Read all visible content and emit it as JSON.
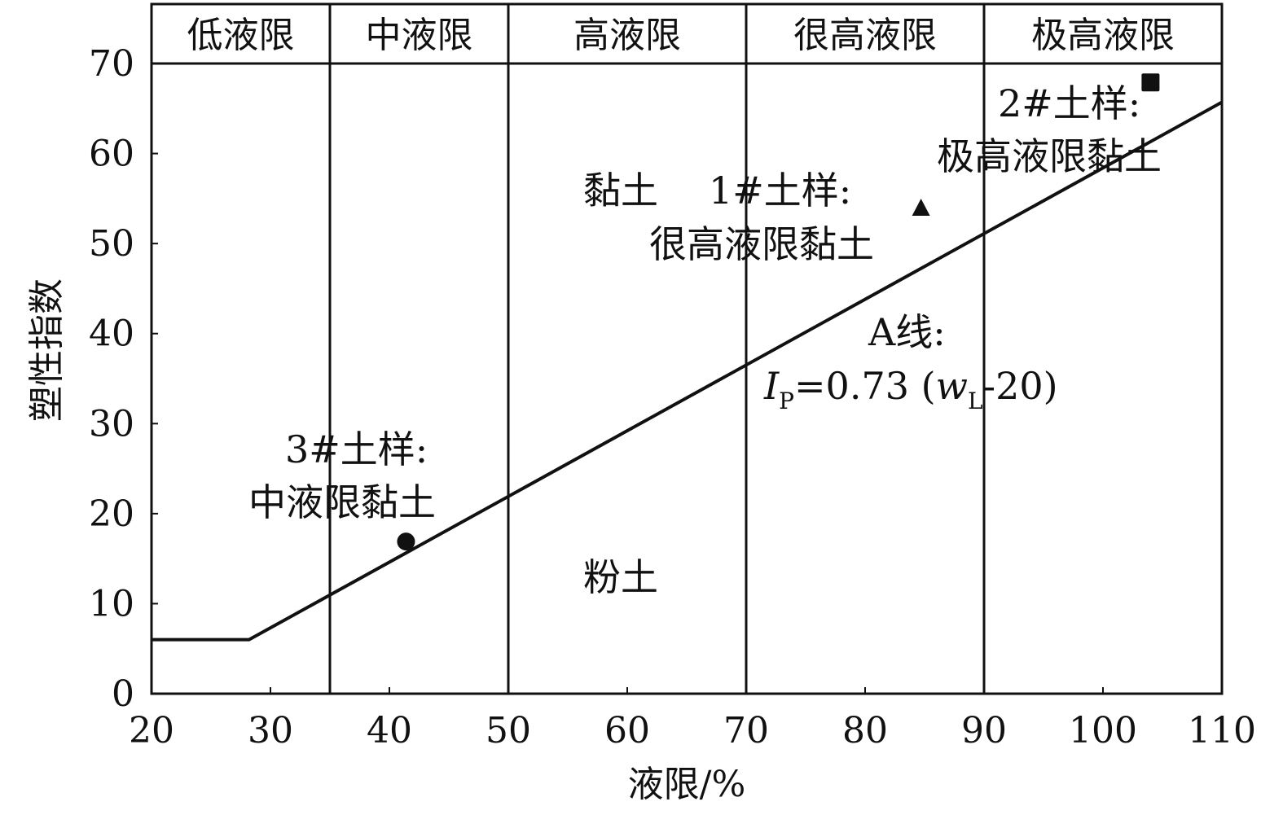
{
  "chart_data": {
    "type": "scatter",
    "title": "",
    "xlabel": "液限/%",
    "ylabel": "塑性指数",
    "xlim": [
      20,
      110
    ],
    "ylim": [
      0,
      70
    ],
    "xticks": [
      20,
      30,
      40,
      50,
      60,
      70,
      80,
      90,
      100,
      110
    ],
    "yticks": [
      0,
      10,
      20,
      30,
      40,
      50,
      60,
      70
    ],
    "grid": false,
    "zones": [
      {
        "label": "低液限",
        "from": 20,
        "to": 35
      },
      {
        "label": "中液限",
        "from": 35,
        "to": 50
      },
      {
        "label": "高液限",
        "from": 50,
        "to": 70
      },
      {
        "label": "很高液限",
        "from": 70,
        "to": 90
      },
      {
        "label": "极高液限",
        "from": 90,
        "to": 110
      }
    ],
    "a_line": {
      "label": "A线:",
      "formula_I": "I",
      "formula_sub_P": "P",
      "formula_mid": "=0.73 (",
      "formula_w": "w",
      "formula_sub_L": "L",
      "formula_end": "-20)",
      "points": [
        [
          20,
          6
        ],
        [
          28.2,
          6
        ],
        [
          110,
          65.7
        ]
      ]
    },
    "region_labels": [
      "黏土",
      "粉土"
    ],
    "series": [
      {
        "name": "1#土样:",
        "classification": "很高液限黏土",
        "marker": "triangle",
        "x": 84.7,
        "y": 53.9
      },
      {
        "name": "2#土样:",
        "classification": "极高液限黏土",
        "marker": "square",
        "x": 104.0,
        "y": 67.9
      },
      {
        "name": "3#土样:",
        "classification": "中液限黏土",
        "marker": "circle",
        "x": 41.4,
        "y": 16.9
      }
    ]
  }
}
